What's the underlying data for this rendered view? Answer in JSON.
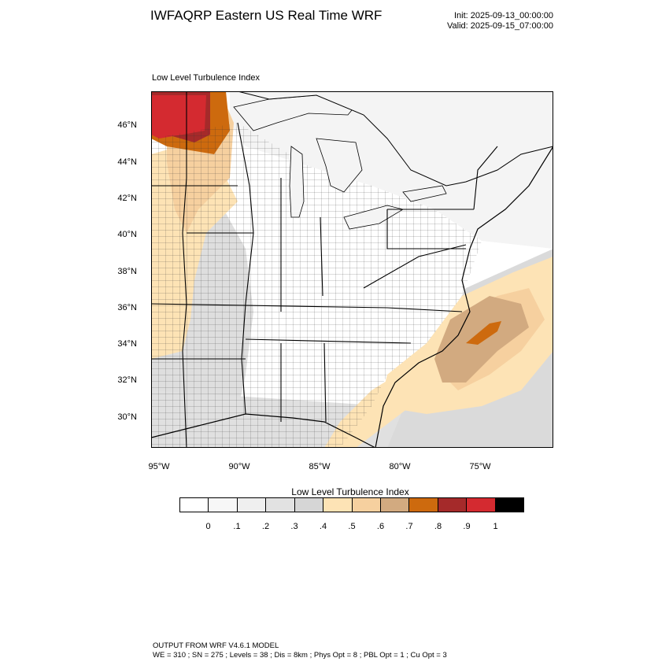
{
  "header": {
    "title": "IWFAQRP Eastern US Real Time WRF",
    "init": "Init: 2025-09-13_00:00:00",
    "valid": "Valid: 2025-09-15_07:00:00"
  },
  "panel": {
    "title": "Low Level Turbulence Index"
  },
  "axes": {
    "lat_labels": [
      "46°N",
      "44°N",
      "42°N",
      "40°N",
      "38°N",
      "36°N",
      "34°N",
      "32°N",
      "30°N"
    ],
    "lon_labels": [
      "95°W",
      "90°W",
      "85°W",
      "80°W",
      "75°W"
    ]
  },
  "colorbar": {
    "title": "Low Level Turbulence Index",
    "labels": [
      "0",
      ".1",
      ".2",
      ".3",
      ".4",
      ".5",
      ".6",
      ".7",
      ".8",
      ".9",
      "1"
    ],
    "colors": [
      "#ffffff",
      "#f7f7f7",
      "#efefef",
      "#e2e2e2",
      "#d6d6d6",
      "#fde3b5",
      "#f6d09f",
      "#d2aa80",
      "#cd6a0e",
      "#a52a2a",
      "#d42a30",
      "#000000"
    ]
  },
  "footer": {
    "line1": "OUTPUT FROM WRF V4.6.1 MODEL",
    "line2": "WE = 310 ; SN = 275 ; Levels = 38 ; Dis = 8km ; Phys Opt = 8 ; PBL Opt = 1 ; Cu Opt = 3"
  }
}
